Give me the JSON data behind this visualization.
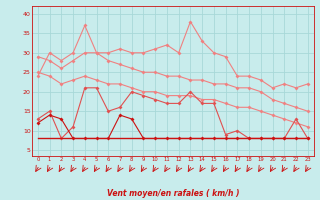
{
  "x": [
    0,
    1,
    2,
    3,
    4,
    5,
    6,
    7,
    8,
    9,
    10,
    11,
    12,
    13,
    14,
    15,
    16,
    17,
    18,
    19,
    20,
    21,
    22,
    23
  ],
  "line1": [
    24,
    30,
    28,
    30,
    37,
    30,
    30,
    31,
    30,
    30,
    31,
    32,
    30,
    38,
    33,
    30,
    29,
    24,
    24,
    23,
    21,
    22,
    21,
    22
  ],
  "line2": [
    29,
    28,
    26,
    28,
    30,
    30,
    28,
    27,
    26,
    25,
    25,
    24,
    24,
    23,
    23,
    22,
    22,
    21,
    21,
    20,
    18,
    17,
    16,
    15
  ],
  "line3": [
    25,
    24,
    22,
    23,
    24,
    23,
    22,
    22,
    21,
    20,
    20,
    19,
    19,
    19,
    18,
    18,
    17,
    16,
    16,
    15,
    14,
    13,
    12,
    11
  ],
  "line4": [
    13,
    15,
    8,
    11,
    21,
    21,
    15,
    16,
    20,
    19,
    18,
    17,
    17,
    20,
    17,
    17,
    9,
    10,
    8,
    8,
    8,
    8,
    13,
    8
  ],
  "line5": [
    12,
    14,
    13,
    8,
    8,
    8,
    8,
    14,
    13,
    8,
    8,
    8,
    8,
    8,
    8,
    8,
    8,
    8,
    8,
    8,
    8,
    8,
    8,
    8
  ],
  "line6": [
    8,
    8,
    8,
    8,
    8,
    8,
    8,
    8,
    8,
    8,
    8,
    8,
    8,
    8,
    8,
    8,
    8,
    8,
    8,
    8,
    8,
    8,
    8,
    8
  ],
  "color_light": "#f08080",
  "color_medium": "#e05050",
  "color_dark": "#cc1111",
  "bg_color": "#c8ecec",
  "grid_color": "#a8d8d8",
  "xlabel": "Vent moyen/en rafales ( km/h )",
  "yticks": [
    5,
    10,
    15,
    20,
    25,
    30,
    35,
    40
  ],
  "ylim": [
    3.5,
    42
  ],
  "xlim": [
    -0.5,
    23.5
  ]
}
